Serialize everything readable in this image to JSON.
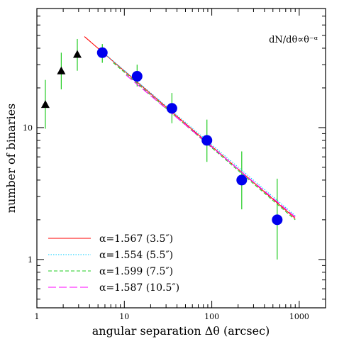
{
  "chart_data": {
    "type": "scatter",
    "title": "",
    "annotation": "dN/dθ∝θ⁻ᵅ",
    "xlabel": "angular separation Δθ (arcsec)",
    "ylabel": "number of binaries",
    "xscale": "log",
    "yscale": "log",
    "xlim": [
      1,
      2000
    ],
    "ylim": [
      0.43,
      80
    ],
    "x_ticks": [
      {
        "value": 1,
        "label": "1"
      },
      {
        "value": 10,
        "label": "10"
      },
      {
        "value": 100,
        "label": "100"
      },
      {
        "value": 1000,
        "label": "1000"
      }
    ],
    "y_ticks": [
      {
        "value": 1,
        "label": "1"
      },
      {
        "value": 10,
        "label": "10"
      }
    ],
    "grid": false,
    "legend_position": "bottom-left",
    "triangles": {
      "color": "#000000",
      "x": [
        1.25,
        1.9,
        2.9
      ],
      "y": [
        15,
        27,
        36
      ],
      "err_low": [
        9.8,
        19.5,
        27
      ],
      "err_high": [
        23,
        37,
        47
      ]
    },
    "circles": {
      "color": "#0000ee",
      "x": [
        5.6,
        14,
        35,
        88,
        220,
        560
      ],
      "y": [
        37,
        24.5,
        14,
        8,
        4,
        2
      ],
      "err_low": [
        31,
        20.5,
        10.8,
        5.5,
        2.4,
        1.0
      ],
      "err_high": [
        43,
        30,
        18.3,
        11.5,
        6.6,
        4.1
      ]
    },
    "error_bar_color": "#22cc22",
    "series": [
      {
        "label": "α=1.567 (3.5″)",
        "color": "#ff0000",
        "dash": "solid",
        "x": [
          3.5,
          900
        ],
        "y": [
          49,
          2.05
        ]
      },
      {
        "label": "α=1.554 (5.5″)",
        "color": "#00ccff",
        "dash": "dotted",
        "x": [
          5.5,
          900
        ],
        "y": [
          38,
          2.15
        ]
      },
      {
        "label": "α=1.599 (7.5″)",
        "color": "#22cc22",
        "dash": "dashed",
        "x": [
          7.5,
          900
        ],
        "y": [
          31,
          2.0
        ]
      },
      {
        "label": "α=1.587 (10.5″)",
        "color": "#ff00ff",
        "dash": "longdash",
        "x": [
          10.5,
          900
        ],
        "y": [
          25,
          2.1
        ]
      }
    ]
  }
}
